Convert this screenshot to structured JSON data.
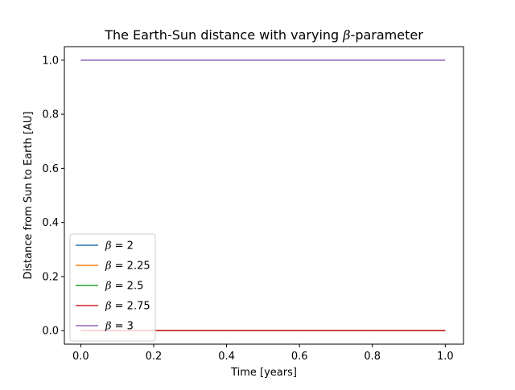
{
  "chart_data": {
    "type": "line",
    "title_prefix": "The Earth-Sun distance with varying ",
    "title_symbol": "β",
    "title_suffix": "-parameter",
    "xlabel": "Time [years]",
    "ylabel": "Distance from Sun to Earth [AU]",
    "xlim": [
      -0.045,
      1.05
    ],
    "ylim": [
      -0.05,
      1.05
    ],
    "xticks": [
      0.0,
      0.2,
      0.4,
      0.6,
      0.8,
      1.0
    ],
    "xtick_labels": [
      "0.0",
      "0.2",
      "0.4",
      "0.6",
      "0.8",
      "1.0"
    ],
    "yticks": [
      0.0,
      0.2,
      0.4,
      0.6,
      0.8,
      1.0
    ],
    "ytick_labels": [
      "0.0",
      "0.2",
      "0.4",
      "0.6",
      "0.8",
      "1.0"
    ],
    "grid": false,
    "legend_position": "lower-left",
    "series": [
      {
        "symbol": "β",
        "value_text": " = 2",
        "color": "#1f77b4",
        "x": [
          0.0,
          1.0
        ],
        "y": [
          0.0,
          0.0
        ]
      },
      {
        "symbol": "β",
        "value_text": " = 2.25",
        "color": "#ff7f0e",
        "x": [
          0.0,
          1.0
        ],
        "y": [
          0.0,
          0.0
        ]
      },
      {
        "symbol": "β",
        "value_text": " = 2.5",
        "color": "#2ca02c",
        "x": [
          0.0,
          1.0
        ],
        "y": [
          0.0,
          0.0
        ]
      },
      {
        "symbol": "β",
        "value_text": " = 2.75",
        "color": "#d62728",
        "x": [
          0.0,
          1.0
        ],
        "y": [
          0.0,
          0.0
        ]
      },
      {
        "symbol": "β",
        "value_text": " = 3",
        "color": "#9467bd",
        "x": [
          0.0,
          1.0
        ],
        "y": [
          1.0,
          1.0
        ]
      }
    ]
  }
}
